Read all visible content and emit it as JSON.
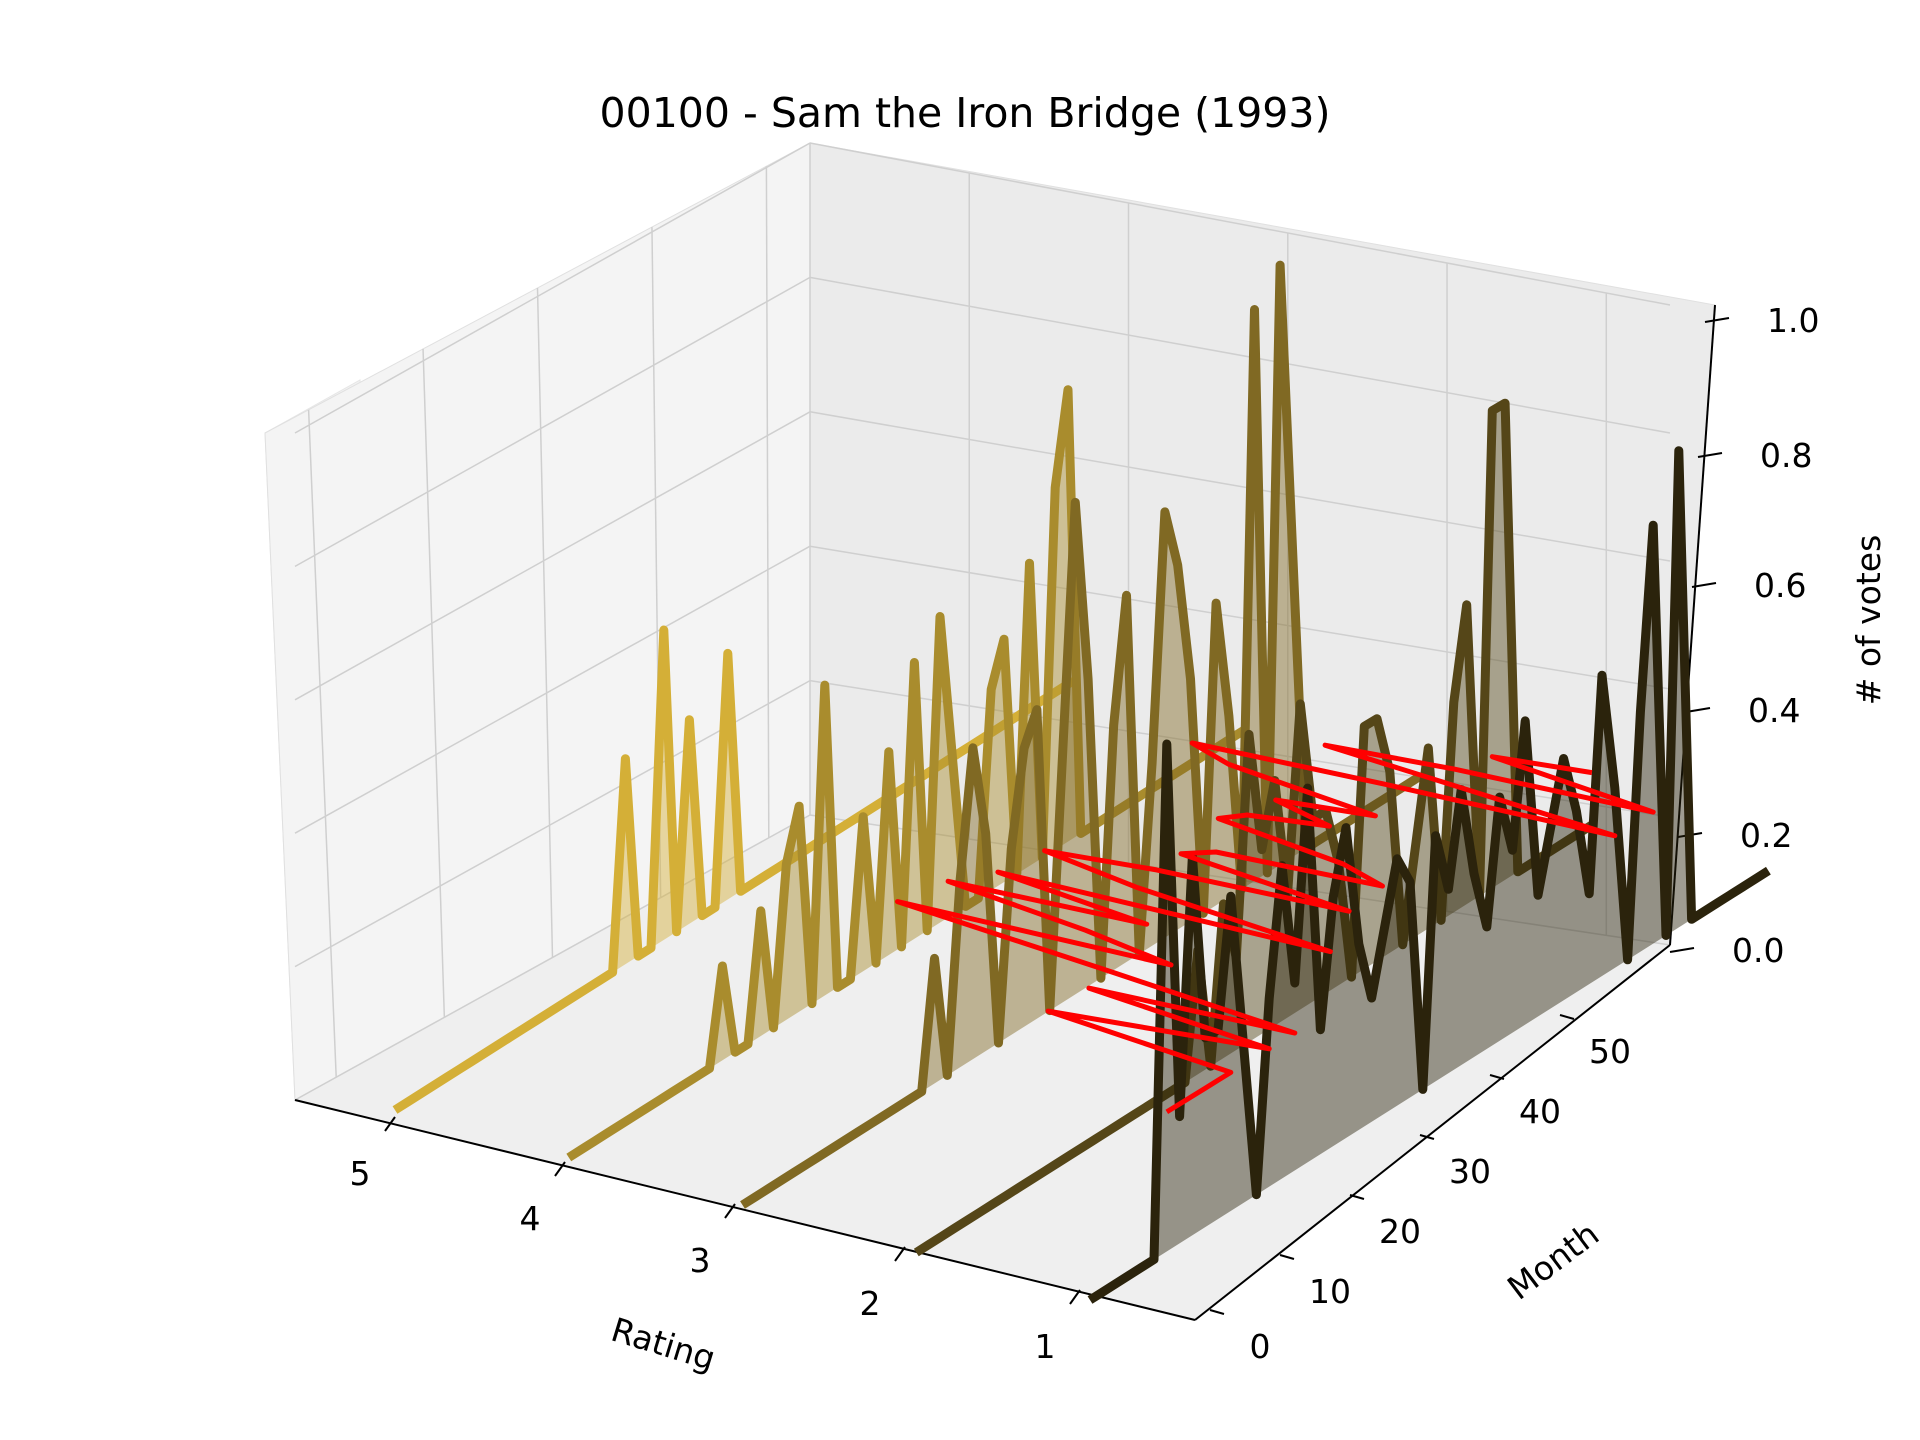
{
  "chart_data": {
    "type": "line",
    "projection": "3d",
    "title": "00100 - Sam the Iron Bridge (1993)",
    "xlabel": "Rating",
    "ylabel": "Month",
    "zlabel": "# of votes",
    "x_ticks": [
      "5",
      "4",
      "3",
      "2",
      "1"
    ],
    "y_ticks": [
      "0",
      "10",
      "20",
      "30",
      "40",
      "50"
    ],
    "z_ticks": [
      "0.0",
      "0.2",
      "0.4",
      "0.6",
      "0.8",
      "1.0"
    ],
    "xlim": [
      0.5,
      5.5
    ],
    "ylim": [
      0,
      54
    ],
    "zlim": [
      0,
      1
    ],
    "grid": true,
    "series": [
      {
        "rating": 5,
        "color": "#d4af37",
        "values": [
          0,
          0,
          0,
          0,
          0,
          0,
          0,
          0,
          0,
          0,
          0,
          0,
          0,
          0,
          0,
          0,
          0,
          0,
          0.33,
          0,
          0,
          0.5,
          0,
          0.33,
          0,
          0,
          0.4,
          0,
          0,
          0,
          0,
          0,
          0,
          0,
          0,
          0,
          0,
          0,
          0,
          0,
          0,
          0,
          0,
          0,
          0,
          0,
          0,
          0,
          0,
          0,
          0,
          0,
          0,
          0
        ]
      },
      {
        "rating": 4,
        "color": "#a98c2d",
        "values": [
          0,
          0,
          0,
          0,
          0,
          0,
          0,
          0,
          0,
          0,
          0,
          0,
          0.15,
          0,
          0,
          0.2,
          0,
          0.25,
          0.33,
          0,
          0.5,
          0,
          0,
          0.25,
          0,
          0.33,
          0,
          0.45,
          0,
          0.5,
          0.25,
          0,
          0,
          0.33,
          0.4,
          0,
          0.5,
          0,
          0.6,
          0.75,
          0,
          0,
          0,
          0,
          0,
          0,
          0,
          0,
          0,
          0,
          0,
          0,
          0,
          0
        ]
      },
      {
        "rating": 3,
        "color": "#806923",
        "values": [
          0,
          0,
          0,
          0,
          0,
          0,
          0,
          0,
          0,
          0,
          0,
          0,
          0,
          0,
          0,
          0.2,
          0,
          0.3,
          0.5,
          0.35,
          0,
          0.3,
          0.45,
          0.5,
          0,
          0.4,
          0.8,
          0.5,
          0,
          0.4,
          0.6,
          0,
          0.3,
          0.7,
          0.6,
          0.4,
          0,
          0.5,
          0.3,
          0,
          0.95,
          0,
          1.0,
          0.5,
          0,
          0,
          0,
          0,
          0,
          0,
          0,
          0,
          0,
          0
        ]
      },
      {
        "rating": 2,
        "color": "#554618",
        "values": [
          0,
          0,
          0,
          0,
          0,
          0,
          0,
          0,
          0,
          0,
          0,
          0,
          0,
          0,
          0,
          0,
          0,
          0,
          0,
          0,
          0,
          0,
          0.2,
          0,
          0.25,
          0.15,
          0.5,
          0.3,
          0.4,
          0.2,
          0.5,
          0.3,
          0.3,
          0.2,
          0,
          0.4,
          0.4,
          0.3,
          0,
          0.15,
          0.3,
          0,
          0.35,
          0.5,
          0,
          0.8,
          0.8,
          0,
          0,
          0,
          0,
          0,
          0,
          0
        ]
      },
      {
        "rating": 1,
        "color": "#2b230c",
        "values": [
          0,
          0,
          0,
          0,
          0,
          0,
          0.8,
          0.2,
          0.6,
          0.3,
          0.3,
          0.5,
          0.25,
          0,
          0.3,
          0.5,
          0.3,
          0.6,
          0.2,
          0.4,
          0.5,
          0.3,
          0.2,
          0.3,
          0.4,
          0.35,
          0,
          0.4,
          0.3,
          0.45,
          0.3,
          0.2,
          0.4,
          0.3,
          0.5,
          0.2,
          0.3,
          0.4,
          0.3,
          0.15,
          0.5,
          0.3,
          0,
          0.4,
          0.7,
          0,
          0.8,
          0,
          0,
          0,
          0,
          0,
          0,
          0
        ]
      }
    ],
    "trend_color": "#ff0000"
  }
}
